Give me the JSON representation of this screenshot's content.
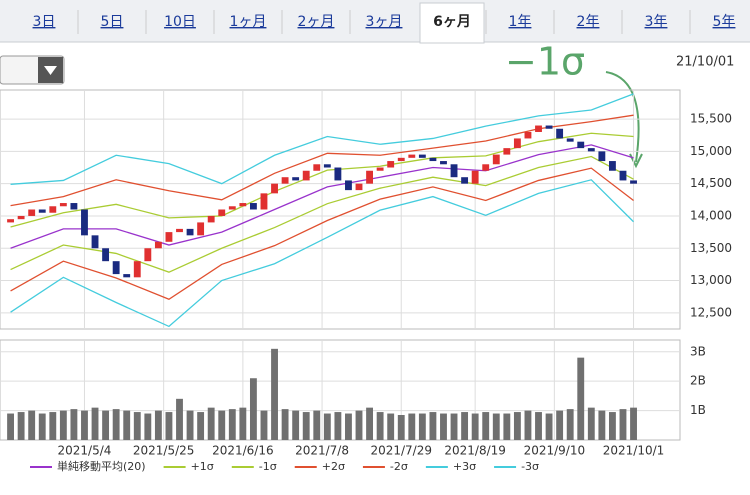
{
  "tabs": [
    "3日",
    "5日",
    "10日",
    "1ヶ月",
    "2ヶ月",
    "3ヶ月",
    "6ヶ月",
    "1年",
    "2年",
    "3年",
    "5年"
  ],
  "selected_tab": 6,
  "date": "21/10/01",
  "annotation": "−1σ",
  "chart_data": {
    "type": "candlestick",
    "xlim": [
      -1,
      63.4
    ],
    "xticks": [
      {
        "value": 7,
        "label": "2021/5/4"
      },
      {
        "value": 14.5,
        "label": "2021/5/25"
      },
      {
        "value": 22,
        "label": "2021/6/16"
      },
      {
        "value": 29.5,
        "label": "2021/7/8"
      },
      {
        "value": 37,
        "label": "2021/7/29"
      },
      {
        "value": 44,
        "label": "2021/8/19"
      },
      {
        "value": 51.5,
        "label": "2021/9/10"
      },
      {
        "value": 59,
        "label": "2021/10/1"
      }
    ],
    "ylim": [
      12250,
      15950
    ],
    "yticks": [
      {
        "value": 12500,
        "label": "12,500"
      },
      {
        "value": 13000,
        "label": "13,000"
      },
      {
        "value": 13500,
        "label": "13,500"
      },
      {
        "value": 14000,
        "label": "14,000"
      },
      {
        "value": 14500,
        "label": "14,500"
      },
      {
        "value": 15000,
        "label": "15,000"
      },
      {
        "value": 15500,
        "label": "15,500"
      }
    ],
    "grid": true,
    "up_color": "#e03030",
    "down_color": "#1a2a80",
    "candles": {
      "open": [
        13900,
        13950,
        14000,
        14100,
        14050,
        14150,
        14200,
        14100,
        13700,
        13500,
        13300,
        13100,
        13050,
        13300,
        13500,
        13600,
        13750,
        13800,
        13700,
        13900,
        14000,
        14100,
        14150,
        14200,
        14100,
        14350,
        14500,
        14600,
        14550,
        14700,
        14800,
        14750,
        14550,
        14400,
        14500,
        14700,
        14750,
        14850,
        14900,
        14950,
        14900,
        14850,
        14800,
        14600,
        14500,
        14700,
        14800,
        14950,
        15050,
        15200,
        15300,
        15400,
        15350,
        15200,
        15150,
        15050,
        15000,
        14850,
        14700,
        14550
      ],
      "close": [
        13950,
        14000,
        14100,
        14050,
        14150,
        14200,
        14100,
        13700,
        13500,
        13300,
        13100,
        13050,
        13300,
        13500,
        13600,
        13750,
        13800,
        13700,
        13900,
        14000,
        14100,
        14150,
        14200,
        14100,
        14350,
        14500,
        14600,
        14550,
        14700,
        14800,
        14750,
        14550,
        14400,
        14500,
        14700,
        14750,
        14850,
        14900,
        14950,
        14900,
        14850,
        14800,
        14600,
        14500,
        14700,
        14800,
        14950,
        15050,
        15200,
        15300,
        15400,
        15350,
        15200,
        15150,
        15050,
        15000,
        14850,
        14700,
        14550,
        14500
      ]
    },
    "band_x": [
      0,
      5,
      10,
      15,
      20,
      25,
      30,
      35,
      40,
      45,
      50,
      55,
      59
    ],
    "series": [
      {
        "name": "単純移動平均(20)",
        "color": "#9933cc",
        "values": [
          13500,
          13800,
          13800,
          13550,
          13750,
          14100,
          14450,
          14600,
          14750,
          14700,
          14950,
          15100,
          14900
        ]
      },
      {
        "name": "+1σ",
        "color": "#aacc33",
        "values": [
          13830,
          14050,
          14180,
          13970,
          14000,
          14380,
          14710,
          14770,
          14900,
          14930,
          15150,
          15280,
          15230
        ]
      },
      {
        "name": "-1σ",
        "color": "#aacc33",
        "values": [
          13170,
          13550,
          13420,
          13130,
          13500,
          13820,
          14190,
          14430,
          14600,
          14470,
          14750,
          14920,
          14570
        ]
      },
      {
        "name": "+2σ",
        "color": "#e05030",
        "values": [
          14160,
          14300,
          14560,
          14390,
          14250,
          14660,
          14970,
          14940,
          15050,
          15160,
          15350,
          15460,
          15560
        ]
      },
      {
        "name": "-2σ",
        "color": "#e05030",
        "values": [
          12840,
          13300,
          13040,
          12710,
          13250,
          13540,
          13930,
          14260,
          14450,
          14240,
          14550,
          14740,
          14240
        ]
      },
      {
        "name": "+3σ",
        "color": "#44ccdd",
        "values": [
          14490,
          14550,
          14940,
          14810,
          14500,
          14940,
          15230,
          15110,
          15200,
          15390,
          15550,
          15640,
          15890
        ]
      },
      {
        "name": "-3σ",
        "color": "#44ccdd",
        "values": [
          12510,
          13050,
          12660,
          12290,
          13000,
          13260,
          13670,
          14090,
          14300,
          14010,
          14350,
          14560,
          13910
        ]
      }
    ],
    "volume": {
      "color": "#707070",
      "ylim": [
        0,
        3.4
      ],
      "yticks": [
        {
          "value": 1,
          "label": "1B"
        },
        {
          "value": 2,
          "label": "2B"
        },
        {
          "value": 3,
          "label": "3B"
        }
      ],
      "values": [
        0.9,
        0.95,
        1.0,
        0.9,
        0.95,
        1.0,
        1.05,
        1.0,
        1.1,
        1.0,
        1.05,
        1.0,
        0.95,
        0.9,
        1.0,
        0.95,
        1.4,
        1.0,
        0.95,
        1.1,
        1.0,
        1.05,
        1.1,
        2.1,
        1.0,
        3.1,
        1.05,
        1.0,
        0.95,
        1.0,
        0.9,
        0.95,
        0.9,
        1.0,
        1.1,
        0.95,
        0.9,
        0.85,
        0.9,
        0.9,
        0.95,
        0.9,
        0.9,
        0.95,
        0.9,
        0.95,
        0.9,
        0.9,
        0.95,
        1.0,
        0.95,
        0.9,
        1.0,
        1.05,
        2.8,
        1.1,
        1.0,
        0.95,
        1.05,
        1.1
      ]
    }
  }
}
